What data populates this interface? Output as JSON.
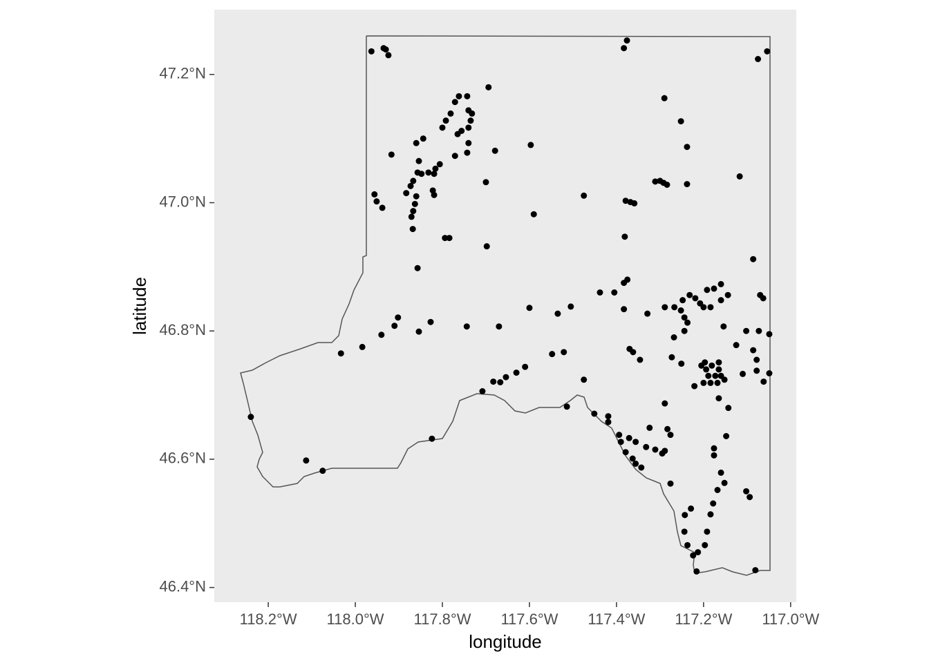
{
  "chart_data": {
    "type": "scatter",
    "x_label": "longitude",
    "y_label": "latitude",
    "xlim": [
      -118.324,
      -116.987
    ],
    "ylim": [
      46.377,
      47.301
    ],
    "xticks": [
      {
        "value": -118.2,
        "label": "118.2°W"
      },
      {
        "value": -118.0,
        "label": "118.0°W"
      },
      {
        "value": -117.8,
        "label": "117.8°W"
      },
      {
        "value": -117.6,
        "label": "117.6°W"
      },
      {
        "value": -117.4,
        "label": "117.4°W"
      },
      {
        "value": -117.2,
        "label": "117.2°W"
      },
      {
        "value": -117.0,
        "label": "117.0°W"
      }
    ],
    "yticks": [
      {
        "value": 46.4,
        "label": "46.4°N"
      },
      {
        "value": 46.6,
        "label": "46.6°N"
      },
      {
        "value": 46.8,
        "label": "46.8°N"
      },
      {
        "value": 47.0,
        "label": "47.0°N"
      },
      {
        "value": 47.2,
        "label": "47.2°N"
      }
    ],
    "grid": false,
    "color": "#000000",
    "x": [
      -117.963,
      -117.935,
      -117.93,
      -117.924,
      -117.376,
      -117.383,
      -117.075,
      -117.054,
      -117.694,
      -117.762,
      -117.743,
      -117.771,
      -117.781,
      -117.792,
      -117.8,
      -117.74,
      -117.732,
      -117.735,
      -117.74,
      -117.756,
      -117.765,
      -117.74,
      -117.743,
      -117.771,
      -117.679,
      -117.29,
      -117.252,
      -117.238,
      -117.844,
      -117.86,
      -117.917,
      -117.854,
      -117.857,
      -117.848,
      -117.832,
      -117.819,
      -117.806,
      -117.816,
      -117.867,
      -117.873,
      -117.883,
      -117.822,
      -117.819,
      -117.956,
      -117.951,
      -117.938,
      -117.86,
      -117.863,
      -117.867,
      -117.871,
      -117.868,
      -117.794,
      -117.784,
      -117.7,
      -117.698,
      -117.59,
      -117.597,
      -117.475,
      -117.379,
      -117.368,
      -117.359,
      -117.311,
      -117.3,
      -117.292,
      -117.284,
      -117.238,
      -117.117,
      -117.381,
      -117.857,
      -117.902,
      -117.91,
      -117.94,
      -117.827,
      -117.854,
      -118.033,
      -117.984,
      -117.744,
      -117.67,
      -117.6,
      -117.535,
      -117.505,
      -117.548,
      -117.521,
      -117.475,
      -117.438,
      -117.405,
      -117.375,
      -117.383,
      -117.383,
      -117.329,
      -117.37,
      -117.362,
      -117.346,
      -117.61,
      -117.63,
      -117.654,
      -117.683,
      -117.667,
      -117.708,
      -117.514,
      -117.451,
      -117.419,
      -117.419,
      -117.394,
      -117.39,
      -117.371,
      -117.356,
      -117.379,
      -117.363,
      -117.356,
      -117.343,
      -117.324,
      -117.332,
      -117.311,
      -117.295,
      -117.289,
      -117.283,
      -117.289,
      -117.276,
      -117.276,
      -117.289,
      -117.267,
      -117.252,
      -117.244,
      -117.237,
      -117.248,
      -117.232,
      -117.219,
      -117.208,
      -117.2,
      -117.184,
      -117.192,
      -117.176,
      -117.16,
      -117.144,
      -117.16,
      -117.273,
      -117.251,
      -117.268,
      -117.244,
      -117.205,
      -117.194,
      -117.181,
      -117.165,
      -117.189,
      -117.173,
      -117.16,
      -117.184,
      -117.2,
      -117.221,
      -117.152,
      -117.168,
      -117.165,
      -117.143,
      -117.154,
      -117.125,
      -117.102,
      -117.049,
      -117.073,
      -117.086,
      -117.078,
      -117.11,
      -117.078,
      -117.062,
      -117.049,
      -117.07,
      -117.063,
      -117.086,
      -117.148,
      -117.16,
      -117.152,
      -117.168,
      -117.178,
      -117.184,
      -117.192,
      -117.197,
      -117.213,
      -117.224,
      -117.216,
      -117.229,
      -117.243,
      -117.244,
      -117.237,
      -117.176,
      -117.176,
      -117.102,
      -117.094,
      -117.081,
      -118.24,
      -118.113,
      -118.075,
      -117.824,
      -117.165,
      -117.197
    ],
    "values": [
      47.236,
      47.241,
      47.239,
      47.23,
      47.253,
      47.241,
      47.224,
      47.236,
      47.18,
      47.166,
      47.166,
      47.157,
      47.139,
      47.128,
      47.117,
      47.144,
      47.139,
      47.128,
      47.117,
      47.112,
      47.107,
      47.093,
      47.078,
      47.073,
      47.081,
      47.163,
      47.127,
      47.087,
      47.1,
      47.093,
      47.075,
      47.065,
      47.047,
      47.045,
      47.047,
      47.045,
      47.06,
      47.053,
      47.034,
      47.026,
      47.015,
      47.019,
      47.012,
      47.013,
      47.002,
      46.992,
      47.01,
      46.998,
      46.987,
      46.978,
      46.959,
      46.945,
      46.945,
      47.032,
      46.932,
      46.982,
      47.09,
      47.011,
      47.003,
      47.001,
      46.999,
      47.033,
      47.034,
      47.031,
      47.028,
      47.029,
      47.041,
      46.947,
      46.898,
      46.821,
      46.808,
      46.794,
      46.814,
      46.799,
      46.765,
      46.775,
      46.807,
      46.807,
      46.836,
      46.827,
      46.838,
      46.764,
      46.767,
      46.724,
      46.86,
      46.86,
      46.88,
      46.875,
      46.834,
      46.827,
      46.772,
      46.767,
      46.755,
      46.744,
      46.735,
      46.728,
      46.721,
      46.72,
      46.706,
      46.682,
      46.671,
      46.667,
      46.658,
      46.638,
      46.627,
      46.633,
      46.627,
      46.611,
      46.601,
      46.593,
      46.587,
      46.649,
      46.619,
      46.615,
      46.609,
      46.613,
      46.647,
      46.687,
      46.638,
      46.562,
      46.837,
      46.837,
      46.832,
      46.821,
      46.813,
      46.848,
      46.856,
      46.851,
      46.843,
      46.837,
      46.837,
      46.864,
      46.866,
      46.873,
      46.856,
      46.848,
      46.759,
      46.749,
      46.79,
      46.8,
      46.746,
      46.74,
      46.746,
      46.74,
      46.73,
      46.73,
      46.73,
      46.719,
      46.719,
      46.714,
      46.724,
      46.719,
      46.695,
      46.68,
      46.807,
      46.778,
      46.8,
      46.795,
      46.8,
      46.77,
      46.755,
      46.733,
      46.738,
      46.721,
      46.734,
      46.856,
      46.851,
      46.912,
      46.636,
      46.579,
      46.563,
      46.552,
      46.531,
      46.514,
      46.487,
      46.466,
      46.455,
      46.45,
      46.425,
      46.523,
      46.513,
      46.487,
      46.466,
      46.617,
      46.606,
      46.55,
      46.541,
      46.427,
      46.666,
      46.598,
      46.582,
      46.632,
      46.751,
      46.751
    ]
  }
}
